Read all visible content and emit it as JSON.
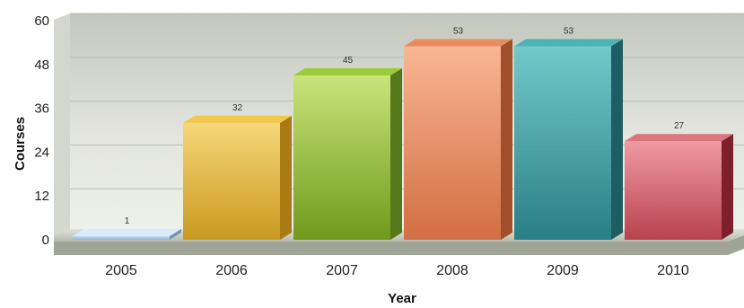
{
  "chart_data": {
    "type": "bar",
    "title": "",
    "xlabel": "Year",
    "ylabel": "Courses",
    "categories": [
      "2005",
      "2006",
      "2007",
      "2008",
      "2009",
      "2010"
    ],
    "values": [
      1,
      32,
      45,
      53,
      53,
      27
    ],
    "ylim": [
      0,
      60
    ],
    "yticks": [
      0,
      12,
      24,
      36,
      48,
      60
    ],
    "grid": true,
    "legend": "none",
    "style": "3d",
    "colors": [
      {
        "front_top": "#c6dcf0",
        "front_bottom": "#8fb3d8",
        "top": "#dcebf8",
        "side": "#6f96bf"
      },
      {
        "front_top": "#f6d77a",
        "front_bottom": "#c99a1f",
        "top": "#f2c84c",
        "side": "#a87c12"
      },
      {
        "front_top": "#c9e47a",
        "front_bottom": "#6f9a1c",
        "top": "#9ccb3a",
        "side": "#55791a"
      },
      {
        "front_top": "#f8b693",
        "front_bottom": "#d26e43",
        "top": "#e88b60",
        "side": "#a14e2a"
      },
      {
        "front_top": "#72c9c9",
        "front_bottom": "#2a7f86",
        "top": "#4fb3b6",
        "side": "#1d5d64"
      },
      {
        "front_top": "#ef9aa2",
        "front_bottom": "#b8424f",
        "top": "#e0737e",
        "side": "#7c2029"
      }
    ]
  }
}
